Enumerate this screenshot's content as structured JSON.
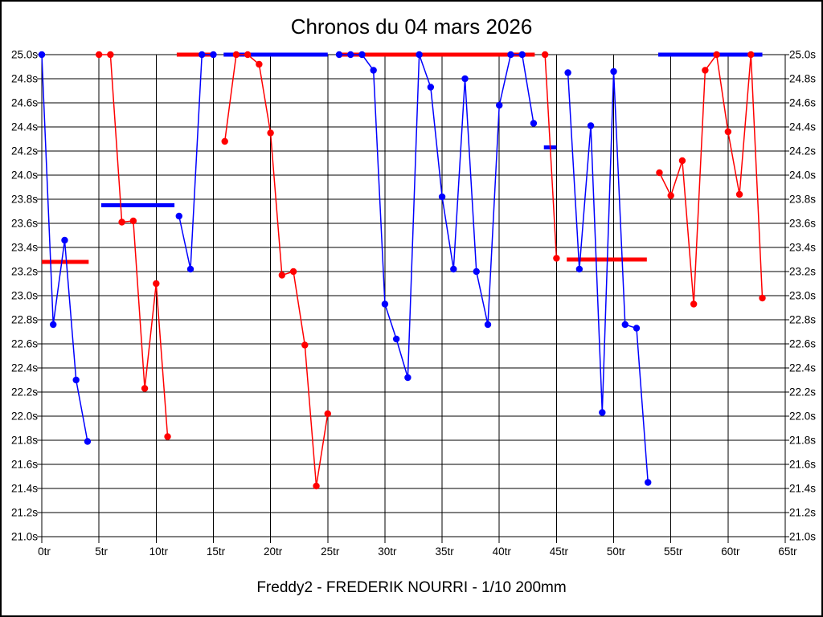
{
  "title": "Chronos du 04 mars 2026",
  "caption": "Freddy2 - FREDERIK NOURRI - 1/10 200mm",
  "chart_data": {
    "type": "line",
    "title": "Chronos du 04 mars 2026",
    "x_unit": "tr",
    "y_unit": "s",
    "xlim": [
      0,
      65
    ],
    "ylim": [
      21.0,
      25.0
    ],
    "grid": true,
    "legend_position": "none",
    "colors": {
      "blue": "#0000ff",
      "red": "#ff0000",
      "grid": "#000000"
    },
    "x_ticks": [
      {
        "v": 0,
        "label": "0tr"
      },
      {
        "v": 5,
        "label": "5tr"
      },
      {
        "v": 10,
        "label": "10tr"
      },
      {
        "v": 15,
        "label": "15tr"
      },
      {
        "v": 20,
        "label": "20tr"
      },
      {
        "v": 25,
        "label": "25tr"
      },
      {
        "v": 30,
        "label": "30tr"
      },
      {
        "v": 35,
        "label": "35tr"
      },
      {
        "v": 40,
        "label": "40tr"
      },
      {
        "v": 45,
        "label": "45tr"
      },
      {
        "v": 50,
        "label": "50tr"
      },
      {
        "v": 55,
        "label": "55tr"
      },
      {
        "v": 60,
        "label": "60tr"
      },
      {
        "v": 65,
        "label": "65tr"
      }
    ],
    "y_ticks": [
      {
        "v": 25.0,
        "label": "25.0s"
      },
      {
        "v": 24.8,
        "label": "24.8s"
      },
      {
        "v": 24.6,
        "label": "24.6s"
      },
      {
        "v": 24.4,
        "label": "24.4s"
      },
      {
        "v": 24.2,
        "label": "24.2s"
      },
      {
        "v": 24.0,
        "label": "24.0s"
      },
      {
        "v": 23.8,
        "label": "23.8s"
      },
      {
        "v": 23.6,
        "label": "23.6s"
      },
      {
        "v": 23.4,
        "label": "23.4s"
      },
      {
        "v": 23.2,
        "label": "23.2s"
      },
      {
        "v": 23.0,
        "label": "23.0s"
      },
      {
        "v": 22.8,
        "label": "22.8s"
      },
      {
        "v": 22.6,
        "label": "22.6s"
      },
      {
        "v": 22.4,
        "label": "22.4s"
      },
      {
        "v": 22.2,
        "label": "22.2s"
      },
      {
        "v": 22.0,
        "label": "22.0s"
      },
      {
        "v": 21.8,
        "label": "21.8s"
      },
      {
        "v": 21.6,
        "label": "21.6s"
      },
      {
        "v": 21.4,
        "label": "21.4s"
      },
      {
        "v": 21.2,
        "label": "21.2s"
      },
      {
        "v": 21.0,
        "label": "21.0s"
      }
    ],
    "series": [
      {
        "name": "chronos-blue",
        "color": "#0000ff",
        "segments": [
          [
            [
              0,
              25.0
            ],
            [
              1,
              22.76
            ],
            [
              2,
              23.46
            ],
            [
              3,
              22.3
            ],
            [
              4,
              21.79
            ]
          ],
          [
            [
              12,
              23.66
            ],
            [
              13,
              23.22
            ],
            [
              14,
              25.0
            ],
            [
              15,
              25.0
            ]
          ],
          [
            [
              26,
              25.0
            ],
            [
              27,
              25.0
            ],
            [
              28,
              25.0
            ],
            [
              29,
              24.87
            ],
            [
              30,
              22.93
            ],
            [
              31,
              22.64
            ],
            [
              32,
              22.32
            ],
            [
              33,
              25.0
            ],
            [
              34,
              24.73
            ],
            [
              35,
              23.82
            ],
            [
              36,
              23.22
            ],
            [
              37,
              24.8
            ],
            [
              38,
              23.2
            ],
            [
              39,
              22.76
            ],
            [
              40,
              24.58
            ],
            [
              41,
              25.0
            ],
            [
              42,
              25.0
            ],
            [
              43,
              24.43
            ]
          ],
          [
            [
              46,
              24.85
            ],
            [
              47,
              23.22
            ],
            [
              48,
              24.41
            ],
            [
              49,
              22.03
            ],
            [
              50,
              24.86
            ],
            [
              51,
              22.76
            ],
            [
              52,
              22.73
            ],
            [
              53,
              21.45
            ]
          ]
        ]
      },
      {
        "name": "chronos-red",
        "color": "#ff0000",
        "segments": [
          [
            [
              5,
              25.0
            ],
            [
              6,
              25.0
            ],
            [
              7,
              23.61
            ],
            [
              8,
              23.62
            ],
            [
              9,
              22.23
            ],
            [
              10,
              23.1
            ],
            [
              11,
              21.83
            ]
          ],
          [
            [
              16,
              24.28
            ],
            [
              17,
              25.0
            ],
            [
              18,
              25.0
            ],
            [
              19,
              24.92
            ],
            [
              20,
              24.35
            ],
            [
              21,
              23.17
            ],
            [
              22,
              23.2
            ],
            [
              23,
              22.59
            ],
            [
              24,
              21.42
            ],
            [
              25,
              22.02
            ]
          ],
          [
            [
              44,
              25.0
            ],
            [
              45,
              23.31
            ]
          ],
          [
            [
              54,
              24.02
            ],
            [
              55,
              23.83
            ],
            [
              56,
              24.12
            ],
            [
              57,
              22.93
            ],
            [
              58,
              24.87
            ],
            [
              59,
              25.0
            ],
            [
              60,
              24.36
            ],
            [
              61,
              23.84
            ],
            [
              62,
              25.0
            ],
            [
              63,
              22.98
            ]
          ]
        ]
      }
    ],
    "average_lines": [
      {
        "color": "#ff0000",
        "y": 23.28,
        "from": 0.0,
        "to": 4.1
      },
      {
        "color": "#0000ff",
        "y": 23.75,
        "from": 5.2,
        "to": 11.6
      },
      {
        "color": "#ff0000",
        "y": 25.0,
        "from": 11.8,
        "to": 15.2
      },
      {
        "color": "#0000ff",
        "y": 25.0,
        "from": 15.9,
        "to": 25.0
      },
      {
        "color": "#ff0000",
        "y": 25.0,
        "from": 26.0,
        "to": 43.1
      },
      {
        "color": "#0000ff",
        "y": 24.23,
        "from": 43.9,
        "to": 45.0
      },
      {
        "color": "#ff0000",
        "y": 23.3,
        "from": 45.9,
        "to": 52.9
      },
      {
        "color": "#0000ff",
        "y": 25.0,
        "from": 53.9,
        "to": 63.0
      }
    ]
  }
}
